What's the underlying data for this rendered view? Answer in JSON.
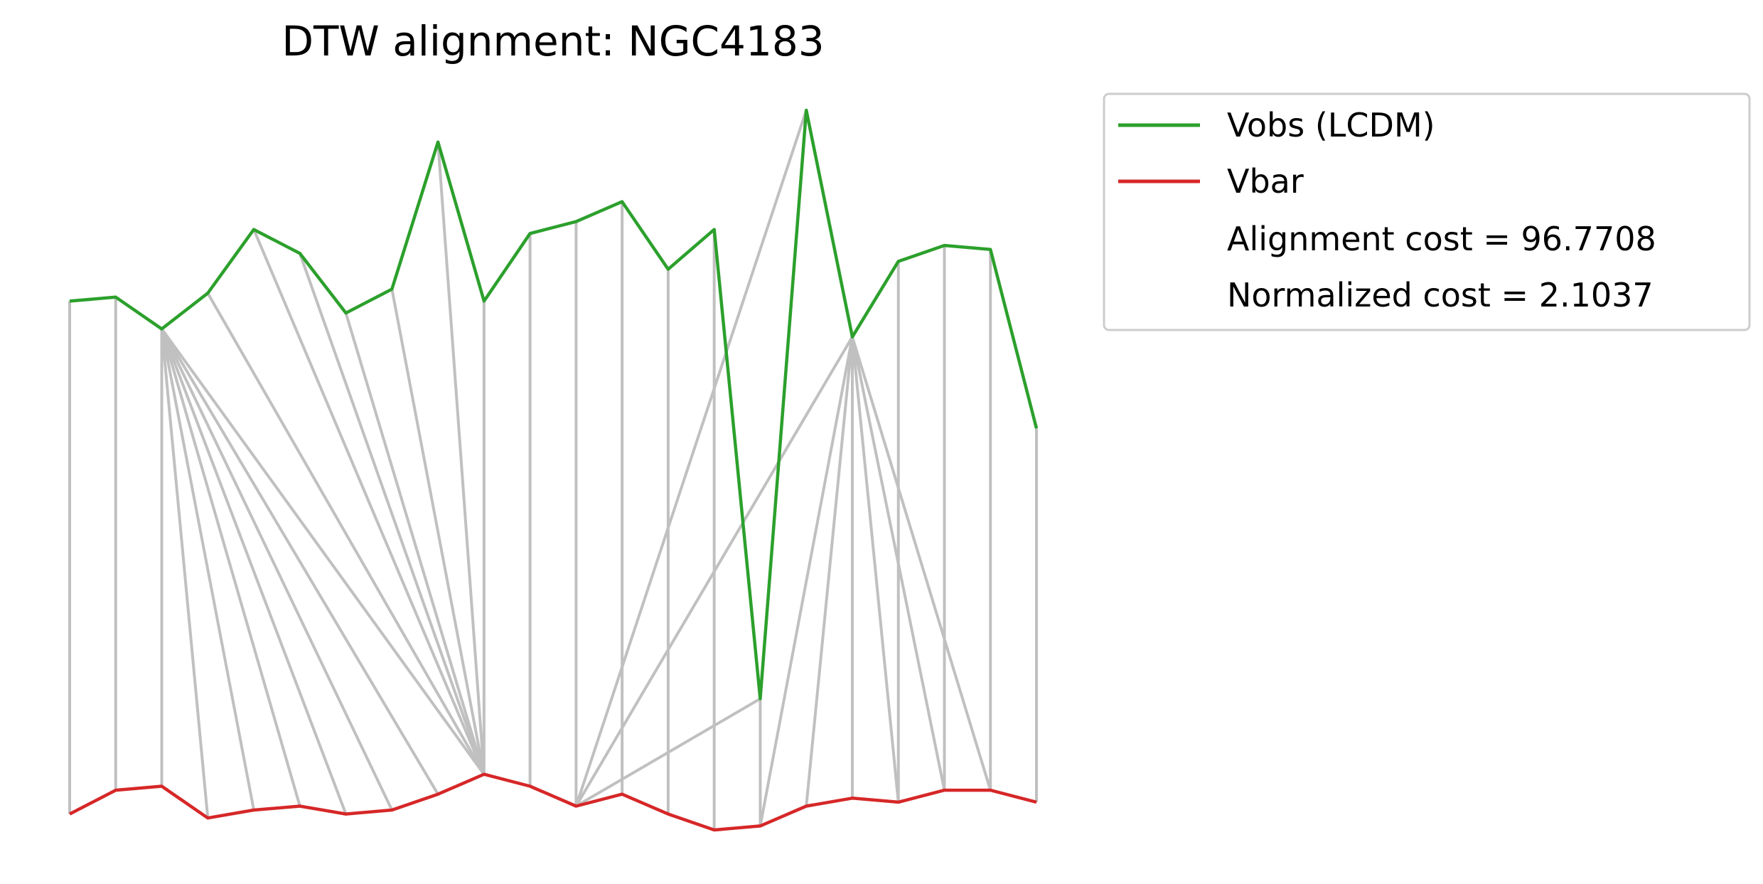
{
  "chart_data": {
    "type": "line",
    "title": "DTW alignment: NGC4183",
    "xlabel": "",
    "ylabel": "",
    "grid": false,
    "axes_visible": false,
    "legend_position": "outside-right-top",
    "series": [
      {
        "name": "Vobs (LCDM)",
        "color": "#2ca02c",
        "values": [
          0.1,
          0.11,
          0.03,
          0.12,
          0.28,
          0.22,
          0.07,
          0.13,
          0.5,
          0.1,
          0.27,
          0.3,
          0.35,
          0.18,
          0.28,
          -0.9,
          0.58,
          0.01,
          0.2,
          0.24,
          0.23,
          -0.22
        ]
      },
      {
        "name": "Vbar",
        "color": "#d62728",
        "values": [
          -1.19,
          -1.13,
          -1.12,
          -1.2,
          -1.18,
          -1.17,
          -1.19,
          -1.18,
          -1.14,
          -1.09,
          -1.12,
          -1.17,
          -1.14,
          -1.19,
          -1.23,
          -1.22,
          -1.17,
          -1.15,
          -1.16,
          -1.13,
          -1.13,
          -1.16
        ]
      }
    ],
    "alignment": {
      "color": "#c0c0c0",
      "pairs": [
        [
          0,
          0
        ],
        [
          1,
          1
        ],
        [
          2,
          2
        ],
        [
          2,
          3
        ],
        [
          2,
          4
        ],
        [
          2,
          5
        ],
        [
          2,
          6
        ],
        [
          2,
          7
        ],
        [
          2,
          8
        ],
        [
          2,
          9
        ],
        [
          3,
          9
        ],
        [
          4,
          9
        ],
        [
          5,
          9
        ],
        [
          6,
          9
        ],
        [
          7,
          9
        ],
        [
          8,
          9
        ],
        [
          9,
          9
        ],
        [
          10,
          10
        ],
        [
          11,
          11
        ],
        [
          12,
          12
        ],
        [
          13,
          13
        ],
        [
          14,
          14
        ],
        [
          15,
          15
        ],
        [
          15,
          11
        ],
        [
          16,
          11
        ],
        [
          17,
          11
        ],
        [
          17,
          15
        ],
        [
          17,
          16
        ],
        [
          17,
          17
        ],
        [
          17,
          18
        ],
        [
          17,
          19
        ],
        [
          17,
          20
        ],
        [
          18,
          18
        ],
        [
          19,
          19
        ],
        [
          20,
          20
        ],
        [
          21,
          21
        ]
      ]
    },
    "annotations": {
      "cost": "Alignment cost = 96.7708",
      "normalized": "Normalized cost = 2.1037"
    }
  }
}
